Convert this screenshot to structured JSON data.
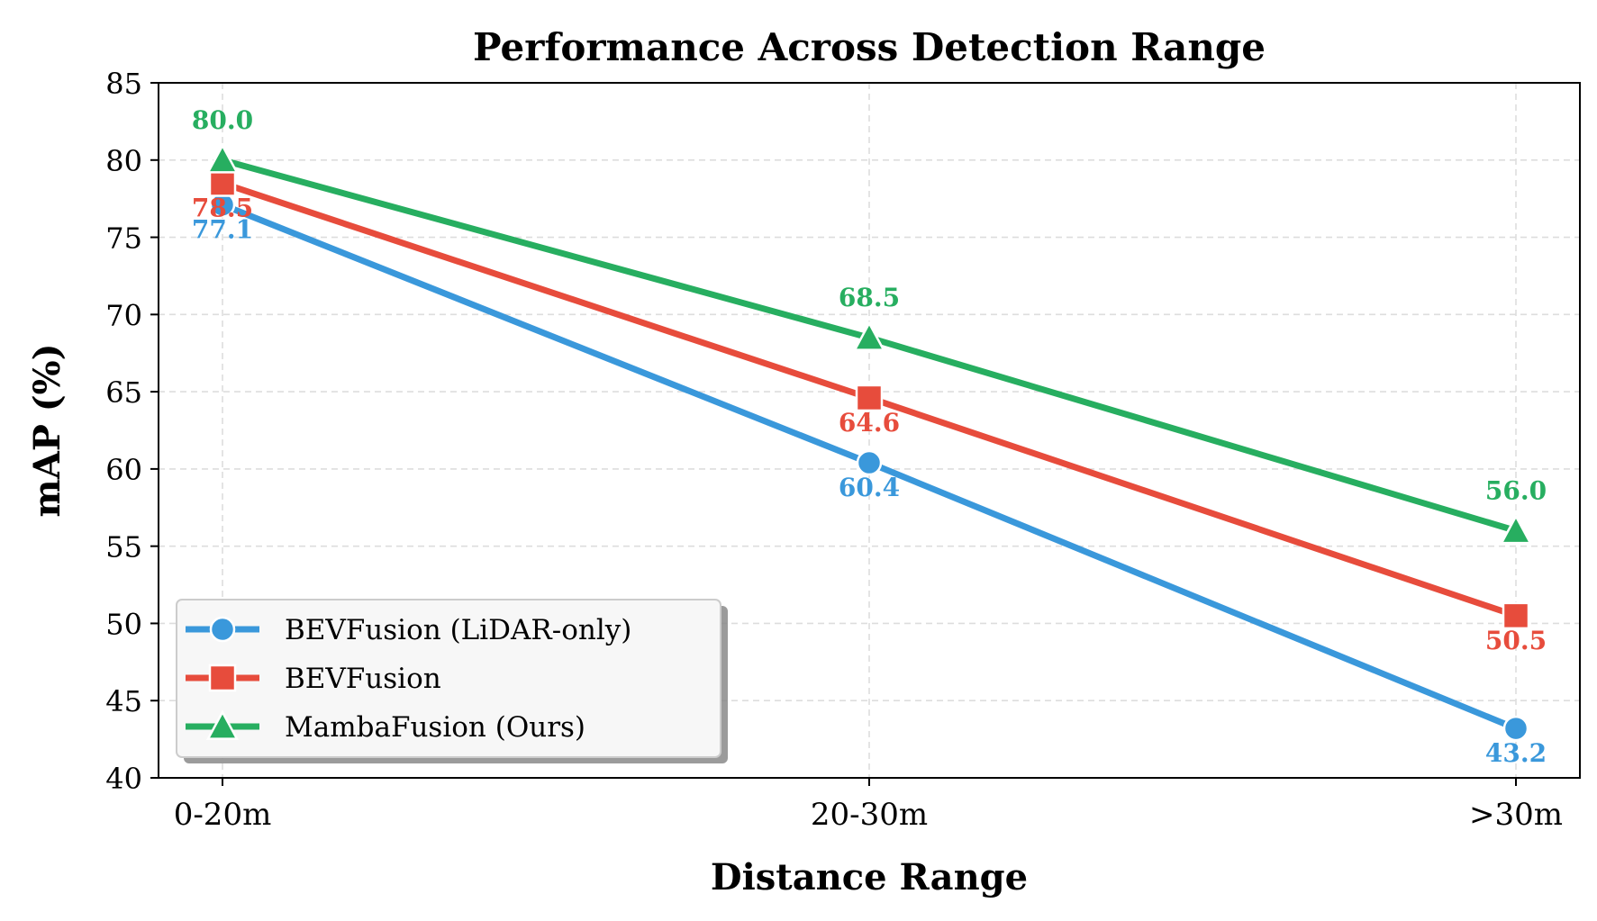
{
  "chart_data": {
    "type": "line",
    "title": "Performance Across Detection Range",
    "xlabel": "Distance Range",
    "ylabel": "mAP (%)",
    "categories": [
      "0-20m",
      "20-30m",
      ">30m"
    ],
    "ylim": [
      40,
      85
    ],
    "yticks": [
      40,
      45,
      50,
      55,
      60,
      65,
      70,
      75,
      80,
      85
    ],
    "grid": true,
    "legend_position": "lower-left",
    "series": [
      {
        "name": "BEVFusion (LiDAR-only)",
        "values": [
          77.1,
          60.4,
          43.2
        ],
        "labels": [
          "77.1",
          "60.4",
          "43.2"
        ],
        "color": "#3a98db",
        "marker": "circle",
        "label_side": "below"
      },
      {
        "name": "BEVFusion",
        "values": [
          78.5,
          64.6,
          50.5
        ],
        "labels": [
          "78.5",
          "64.6",
          "50.5"
        ],
        "color": "#e74c3c",
        "marker": "square",
        "label_side": "below"
      },
      {
        "name": "MambaFusion (Ours)",
        "values": [
          80.0,
          68.5,
          56.0
        ],
        "labels": [
          "80.0",
          "68.5",
          "56.0"
        ],
        "color": "#27ae60",
        "marker": "triangle",
        "label_side": "above"
      }
    ]
  }
}
